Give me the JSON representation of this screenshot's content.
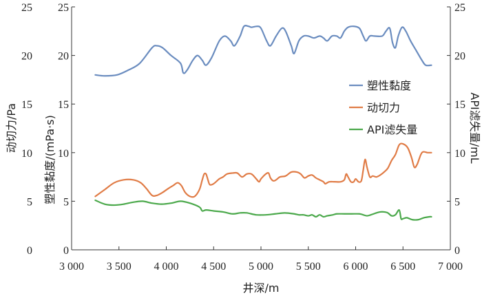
{
  "chart_data": {
    "type": "line",
    "xlabel": "井深/m",
    "ylabel_left_outer": "动切力/Pa",
    "ylabel_left_inner": "塑性黏度/(mPa·s)",
    "ylabel_right": "API滤失量/mL",
    "xlim": [
      3000,
      7000
    ],
    "ylim": [
      0,
      25
    ],
    "x_ticks": [
      "3 000",
      "3 500",
      "4 000",
      "4 500",
      "5 000",
      "5 500",
      "6 000",
      "6 500",
      "7 000"
    ],
    "y_ticks_left_outer": [
      "0",
      "5",
      "10",
      "15",
      "20",
      "25"
    ],
    "y_ticks_left_inner": [
      "0",
      "5",
      "10",
      "15",
      "20",
      "25"
    ],
    "y_ticks_right": [
      "0",
      "5",
      "10",
      "15",
      "20",
      "25"
    ],
    "grid": false,
    "legend_position": "right",
    "series": [
      {
        "name": "塑性黏度",
        "color": "#6a8cbf",
        "points": [
          [
            3250,
            18
          ],
          [
            3350,
            17.9
          ],
          [
            3480,
            18
          ],
          [
            3600,
            18.5
          ],
          [
            3720,
            19.2
          ],
          [
            3850,
            20.8
          ],
          [
            3900,
            21
          ],
          [
            3960,
            20.8
          ],
          [
            4050,
            20
          ],
          [
            4150,
            19.2
          ],
          [
            4180,
            18.2
          ],
          [
            4220,
            18.5
          ],
          [
            4280,
            19.5
          ],
          [
            4330,
            20
          ],
          [
            4380,
            19.5
          ],
          [
            4420,
            19
          ],
          [
            4480,
            19.8
          ],
          [
            4560,
            21.5
          ],
          [
            4620,
            22
          ],
          [
            4680,
            21.5
          ],
          [
            4720,
            21
          ],
          [
            4780,
            22
          ],
          [
            4820,
            23
          ],
          [
            4870,
            23
          ],
          [
            4900,
            22.9
          ],
          [
            4960,
            23
          ],
          [
            5000,
            22.8
          ],
          [
            5060,
            21.5
          ],
          [
            5100,
            21
          ],
          [
            5160,
            22
          ],
          [
            5220,
            22.8
          ],
          [
            5260,
            22.5
          ],
          [
            5320,
            21
          ],
          [
            5350,
            20.2
          ],
          [
            5400,
            21.5
          ],
          [
            5450,
            22
          ],
          [
            5500,
            22
          ],
          [
            5560,
            21.8
          ],
          [
            5620,
            22
          ],
          [
            5660,
            21.8
          ],
          [
            5700,
            21.5
          ],
          [
            5750,
            22
          ],
          [
            5800,
            22
          ],
          [
            5840,
            21.8
          ],
          [
            5880,
            22.5
          ],
          [
            5920,
            22.9
          ],
          [
            5980,
            23
          ],
          [
            6040,
            22.8
          ],
          [
            6080,
            22
          ],
          [
            6110,
            21.5
          ],
          [
            6150,
            22
          ],
          [
            6200,
            22
          ],
          [
            6280,
            22
          ],
          [
            6320,
            22.5
          ],
          [
            6360,
            22.8
          ],
          [
            6390,
            21.3
          ],
          [
            6420,
            20.8
          ],
          [
            6450,
            22
          ],
          [
            6490,
            22.9
          ],
          [
            6530,
            22.5
          ],
          [
            6580,
            21.5
          ],
          [
            6640,
            20.5
          ],
          [
            6700,
            19.5
          ],
          [
            6740,
            19
          ],
          [
            6800,
            19
          ]
        ]
      },
      {
        "name": "动切力",
        "color": "#e07b45",
        "points": [
          [
            3250,
            5.5
          ],
          [
            3350,
            6.2
          ],
          [
            3450,
            6.9
          ],
          [
            3550,
            7.2
          ],
          [
            3650,
            7.2
          ],
          [
            3730,
            6.9
          ],
          [
            3790,
            6.3
          ],
          [
            3850,
            5.6
          ],
          [
            3900,
            5.6
          ],
          [
            3960,
            5.9
          ],
          [
            4020,
            6.3
          ],
          [
            4070,
            6.6
          ],
          [
            4120,
            6.9
          ],
          [
            4160,
            6.6
          ],
          [
            4200,
            5.9
          ],
          [
            4250,
            5.5
          ],
          [
            4300,
            5.5
          ],
          [
            4350,
            6.2
          ],
          [
            4380,
            7.2
          ],
          [
            4400,
            7.8
          ],
          [
            4420,
            7.8
          ],
          [
            4440,
            7.2
          ],
          [
            4460,
            6.7
          ],
          [
            4500,
            6.8
          ],
          [
            4560,
            7.3
          ],
          [
            4600,
            7.5
          ],
          [
            4640,
            7.8
          ],
          [
            4700,
            7.9
          ],
          [
            4750,
            7.9
          ],
          [
            4800,
            7.5
          ],
          [
            4850,
            7.8
          ],
          [
            4900,
            7.8
          ],
          [
            4950,
            7.3
          ],
          [
            4980,
            7
          ],
          [
            5000,
            7.3
          ],
          [
            5050,
            7.8
          ],
          [
            5080,
            7.9
          ],
          [
            5100,
            7.4
          ],
          [
            5130,
            7.1
          ],
          [
            5160,
            7.2
          ],
          [
            5200,
            7.5
          ],
          [
            5260,
            7.6
          ],
          [
            5320,
            8
          ],
          [
            5380,
            8
          ],
          [
            5420,
            7.8
          ],
          [
            5460,
            7.4
          ],
          [
            5500,
            7.6
          ],
          [
            5540,
            7.7
          ],
          [
            5580,
            7.4
          ],
          [
            5620,
            7.2
          ],
          [
            5660,
            7
          ],
          [
            5680,
            6.8
          ],
          [
            5720,
            7
          ],
          [
            5780,
            7
          ],
          [
            5840,
            7
          ],
          [
            5880,
            7.2
          ],
          [
            5900,
            7.8
          ],
          [
            5920,
            7.5
          ],
          [
            5950,
            7
          ],
          [
            5980,
            7
          ],
          [
            6000,
            7.3
          ],
          [
            6030,
            7
          ],
          [
            6060,
            7.1
          ],
          [
            6080,
            8.2
          ],
          [
            6100,
            9.3
          ],
          [
            6120,
            8.5
          ],
          [
            6150,
            7.5
          ],
          [
            6180,
            7.6
          ],
          [
            6220,
            7.5
          ],
          [
            6260,
            7.7
          ],
          [
            6300,
            8
          ],
          [
            6340,
            8.4
          ],
          [
            6380,
            9.2
          ],
          [
            6420,
            9.8
          ],
          [
            6460,
            10.8
          ],
          [
            6500,
            10.9
          ],
          [
            6550,
            10.5
          ],
          [
            6590,
            9.5
          ],
          [
            6620,
            8.5
          ],
          [
            6650,
            8.8
          ],
          [
            6700,
            10
          ],
          [
            6760,
            10
          ],
          [
            6800,
            10
          ]
        ]
      },
      {
        "name": "API滤失量",
        "color": "#4aa84a",
        "points": [
          [
            3250,
            5.1
          ],
          [
            3350,
            4.7
          ],
          [
            3450,
            4.6
          ],
          [
            3550,
            4.7
          ],
          [
            3650,
            4.9
          ],
          [
            3750,
            5
          ],
          [
            3850,
            4.8
          ],
          [
            3950,
            4.7
          ],
          [
            4050,
            4.8
          ],
          [
            4150,
            5
          ],
          [
            4250,
            4.8
          ],
          [
            4350,
            4.4
          ],
          [
            4380,
            4
          ],
          [
            4420,
            4.1
          ],
          [
            4500,
            4
          ],
          [
            4600,
            3.9
          ],
          [
            4700,
            3.7
          ],
          [
            4780,
            3.8
          ],
          [
            4850,
            3.8
          ],
          [
            4950,
            3.6
          ],
          [
            5050,
            3.6
          ],
          [
            5150,
            3.7
          ],
          [
            5250,
            3.8
          ],
          [
            5350,
            3.7
          ],
          [
            5400,
            3.6
          ],
          [
            5450,
            3.6
          ],
          [
            5500,
            3.5
          ],
          [
            5540,
            3.6
          ],
          [
            5580,
            3.4
          ],
          [
            5620,
            3.6
          ],
          [
            5660,
            3.4
          ],
          [
            5700,
            3.5
          ],
          [
            5760,
            3.6
          ],
          [
            5800,
            3.7
          ],
          [
            5880,
            3.7
          ],
          [
            5960,
            3.7
          ],
          [
            6040,
            3.7
          ],
          [
            6080,
            3.6
          ],
          [
            6120,
            3.5
          ],
          [
            6160,
            3.6
          ],
          [
            6220,
            3.8
          ],
          [
            6260,
            3.9
          ],
          [
            6300,
            3.9
          ],
          [
            6340,
            3.8
          ],
          [
            6380,
            3.5
          ],
          [
            6420,
            3.6
          ],
          [
            6460,
            4.1
          ],
          [
            6480,
            3.2
          ],
          [
            6500,
            3.2
          ],
          [
            6540,
            3.3
          ],
          [
            6600,
            3.1
          ],
          [
            6660,
            3.1
          ],
          [
            6720,
            3.3
          ],
          [
            6780,
            3.4
          ],
          [
            6800,
            3.4
          ]
        ]
      }
    ]
  }
}
